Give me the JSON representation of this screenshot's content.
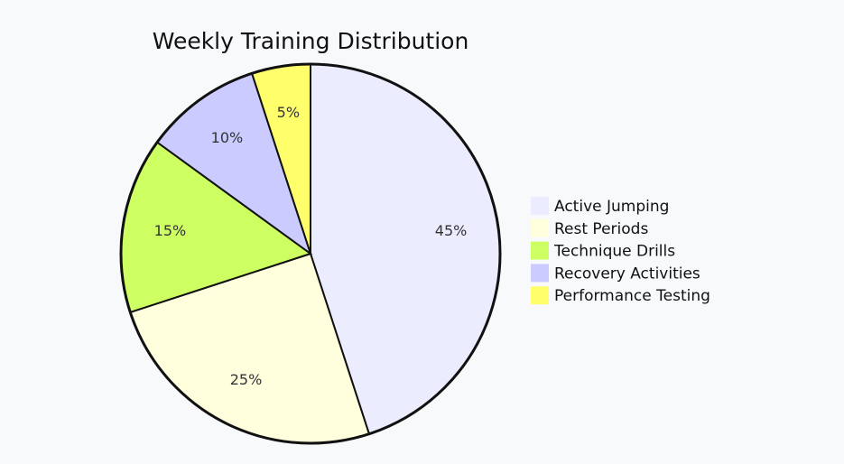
{
  "chart_data": {
    "type": "pie",
    "title": "Weekly Training Distribution",
    "legend_position": "right",
    "slices": [
      {
        "name": "Active Jumping",
        "value": 45,
        "label": "45%",
        "color": "#ececff"
      },
      {
        "name": "Rest Periods",
        "value": 25,
        "label": "25%",
        "color": "#ffffde"
      },
      {
        "name": "Technique Drills",
        "value": 15,
        "label": "15%",
        "color": "#cdff63"
      },
      {
        "name": "Recovery Activities",
        "value": 10,
        "label": "10%",
        "color": "#cbcbff"
      },
      {
        "name": "Performance Testing",
        "value": 5,
        "label": "5%",
        "color": "#ffff6b"
      }
    ]
  }
}
